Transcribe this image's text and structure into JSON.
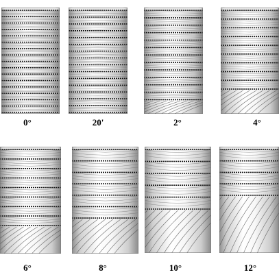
{
  "panels": [
    {
      "label": "0°",
      "lines": 17,
      "fill": 1.0,
      "wave": 0.15
    },
    {
      "label": "20'",
      "lines": 16,
      "fill": 1.0,
      "wave": 0.25
    },
    {
      "label": "2°",
      "lines": 13,
      "fill": 0.88,
      "wave": 0.45
    },
    {
      "label": "4°",
      "lines": 10,
      "fill": 0.78,
      "wave": 0.6
    },
    {
      "label": "6°",
      "lines": 9,
      "fill": 0.75,
      "wave": 0.7
    },
    {
      "label": "8°",
      "lines": 7,
      "fill": 0.68,
      "wave": 0.8
    },
    {
      "label": "10°",
      "lines": 6,
      "fill": 0.6,
      "wave": 0.9
    },
    {
      "label": "12°",
      "lines": 5,
      "fill": 0.47,
      "wave": 1.0
    }
  ]
}
